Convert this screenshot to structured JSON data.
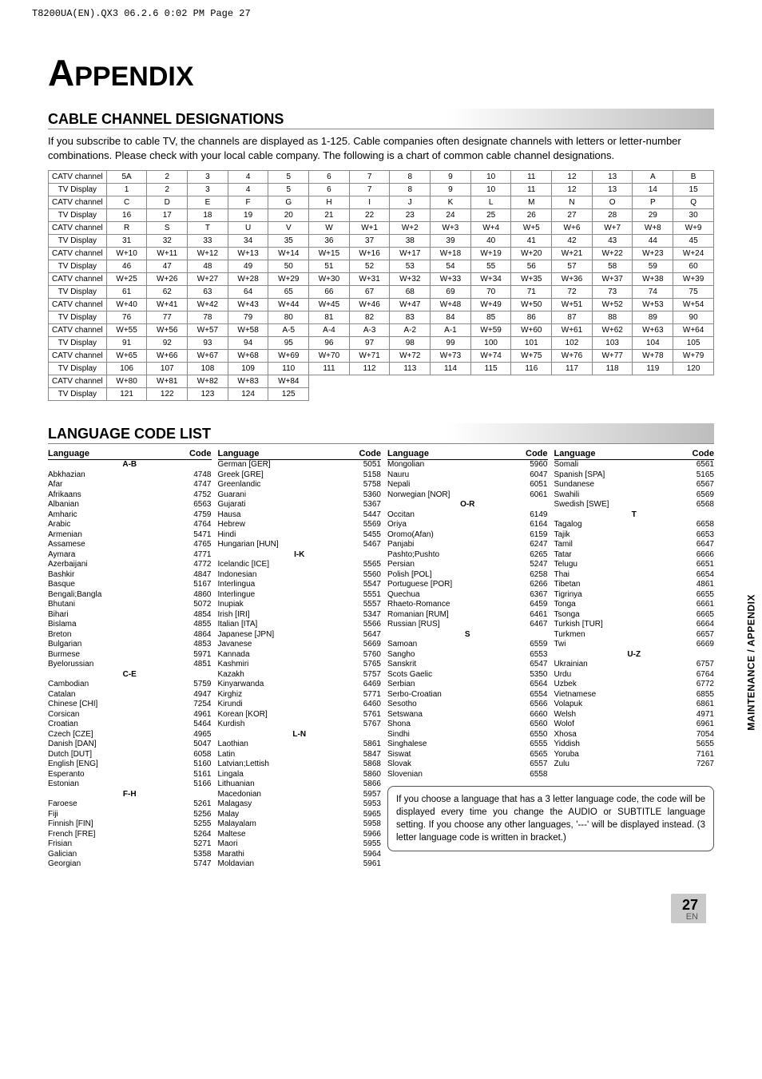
{
  "header_line": "T8200UA(EN).QX3  06.2.6  0:02 PM  Page 27",
  "appendix_label": "PPENDIX",
  "section_cable_title": "CABLE CHANNEL DESIGNATIONS",
  "intro_text": "If you subscribe to cable TV, the channels are displayed as 1-125. Cable companies often designate channels with letters or letter-number combinations. Please check with your local cable company. The following is a chart of common cable channel designations.",
  "row_labels": {
    "catv": "CATV channel",
    "tv": "TV Display"
  },
  "channel_rows": [
    {
      "catv": [
        "5A",
        "2",
        "3",
        "4",
        "5",
        "6",
        "7",
        "8",
        "9",
        "10",
        "11",
        "12",
        "13",
        "A",
        "B"
      ],
      "tv": [
        "1",
        "2",
        "3",
        "4",
        "5",
        "6",
        "7",
        "8",
        "9",
        "10",
        "11",
        "12",
        "13",
        "14",
        "15"
      ]
    },
    {
      "catv": [
        "C",
        "D",
        "E",
        "F",
        "G",
        "H",
        "I",
        "J",
        "K",
        "L",
        "M",
        "N",
        "O",
        "P",
        "Q"
      ],
      "tv": [
        "16",
        "17",
        "18",
        "19",
        "20",
        "21",
        "22",
        "23",
        "24",
        "25",
        "26",
        "27",
        "28",
        "29",
        "30"
      ]
    },
    {
      "catv": [
        "R",
        "S",
        "T",
        "U",
        "V",
        "W",
        "W+1",
        "W+2",
        "W+3",
        "W+4",
        "W+5",
        "W+6",
        "W+7",
        "W+8",
        "W+9"
      ],
      "tv": [
        "31",
        "32",
        "33",
        "34",
        "35",
        "36",
        "37",
        "38",
        "39",
        "40",
        "41",
        "42",
        "43",
        "44",
        "45"
      ]
    },
    {
      "catv": [
        "W+10",
        "W+11",
        "W+12",
        "W+13",
        "W+14",
        "W+15",
        "W+16",
        "W+17",
        "W+18",
        "W+19",
        "W+20",
        "W+21",
        "W+22",
        "W+23",
        "W+24"
      ],
      "tv": [
        "46",
        "47",
        "48",
        "49",
        "50",
        "51",
        "52",
        "53",
        "54",
        "55",
        "56",
        "57",
        "58",
        "59",
        "60"
      ]
    },
    {
      "catv": [
        "W+25",
        "W+26",
        "W+27",
        "W+28",
        "W+29",
        "W+30",
        "W+31",
        "W+32",
        "W+33",
        "W+34",
        "W+35",
        "W+36",
        "W+37",
        "W+38",
        "W+39"
      ],
      "tv": [
        "61",
        "62",
        "63",
        "64",
        "65",
        "66",
        "67",
        "68",
        "69",
        "70",
        "71",
        "72",
        "73",
        "74",
        "75"
      ]
    },
    {
      "catv": [
        "W+40",
        "W+41",
        "W+42",
        "W+43",
        "W+44",
        "W+45",
        "W+46",
        "W+47",
        "W+48",
        "W+49",
        "W+50",
        "W+51",
        "W+52",
        "W+53",
        "W+54"
      ],
      "tv": [
        "76",
        "77",
        "78",
        "79",
        "80",
        "81",
        "82",
        "83",
        "84",
        "85",
        "86",
        "87",
        "88",
        "89",
        "90"
      ]
    },
    {
      "catv": [
        "W+55",
        "W+56",
        "W+57",
        "W+58",
        "A-5",
        "A-4",
        "A-3",
        "A-2",
        "A-1",
        "W+59",
        "W+60",
        "W+61",
        "W+62",
        "W+63",
        "W+64"
      ],
      "tv": [
        "91",
        "92",
        "93",
        "94",
        "95",
        "96",
        "97",
        "98",
        "99",
        "100",
        "101",
        "102",
        "103",
        "104",
        "105"
      ]
    },
    {
      "catv": [
        "W+65",
        "W+66",
        "W+67",
        "W+68",
        "W+69",
        "W+70",
        "W+71",
        "W+72",
        "W+73",
        "W+74",
        "W+75",
        "W+76",
        "W+77",
        "W+78",
        "W+79"
      ],
      "tv": [
        "106",
        "107",
        "108",
        "109",
        "110",
        "111",
        "112",
        "113",
        "114",
        "115",
        "116",
        "117",
        "118",
        "119",
        "120"
      ]
    },
    {
      "catv": [
        "W+80",
        "W+81",
        "W+82",
        "W+83",
        "W+84"
      ],
      "tv": [
        "121",
        "122",
        "123",
        "124",
        "125"
      ]
    }
  ],
  "section_lang_title": "LANGUAGE CODE LIST",
  "lang_headers": {
    "language": "Language",
    "code": "Code"
  },
  "lang_columns": [
    [
      {
        "g": "A-B"
      },
      {
        "n": "Abkhazian",
        "c": "4748"
      },
      {
        "n": "Afar",
        "c": "4747"
      },
      {
        "n": "Afrikaans",
        "c": "4752"
      },
      {
        "n": "Albanian",
        "c": "6563"
      },
      {
        "n": "Amharic",
        "c": "4759"
      },
      {
        "n": "Arabic",
        "c": "4764"
      },
      {
        "n": "Armenian",
        "c": "5471"
      },
      {
        "n": "Assamese",
        "c": "4765"
      },
      {
        "n": "Aymara",
        "c": "4771"
      },
      {
        "n": "Azerbaijani",
        "c": "4772"
      },
      {
        "n": "Bashkir",
        "c": "4847"
      },
      {
        "n": "Basque",
        "c": "5167"
      },
      {
        "n": "Bengali;Bangla",
        "c": "4860"
      },
      {
        "n": "Bhutani",
        "c": "5072"
      },
      {
        "n": "Bihari",
        "c": "4854"
      },
      {
        "n": "Bislama",
        "c": "4855"
      },
      {
        "n": "Breton",
        "c": "4864"
      },
      {
        "n": "Bulgarian",
        "c": "4853"
      },
      {
        "n": "Burmese",
        "c": "5971"
      },
      {
        "n": "Byelorussian",
        "c": "4851"
      },
      {
        "g": "C-E"
      },
      {
        "n": "Cambodian",
        "c": "5759"
      },
      {
        "n": "Catalan",
        "c": "4947"
      },
      {
        "n": "Chinese [CHI]",
        "c": "7254"
      },
      {
        "n": "Corsican",
        "c": "4961"
      },
      {
        "n": "Croatian",
        "c": "5464"
      },
      {
        "n": "Czech [CZE]",
        "c": "4965"
      },
      {
        "n": "Danish [DAN]",
        "c": "5047"
      },
      {
        "n": "Dutch [DUT]",
        "c": "6058"
      },
      {
        "n": "English [ENG]",
        "c": "5160"
      },
      {
        "n": "Esperanto",
        "c": "5161"
      },
      {
        "n": "Estonian",
        "c": "5166"
      },
      {
        "g": "F-H"
      },
      {
        "n": "Faroese",
        "c": "5261"
      },
      {
        "n": "Fiji",
        "c": "5256"
      },
      {
        "n": "Finnish [FIN]",
        "c": "5255"
      },
      {
        "n": "French [FRE]",
        "c": "5264"
      },
      {
        "n": "Frisian",
        "c": "5271"
      },
      {
        "n": "Galician",
        "c": "5358"
      },
      {
        "n": "Georgian",
        "c": "5747"
      }
    ],
    [
      {
        "n": "German [GER]",
        "c": "5051"
      },
      {
        "n": "Greek [GRE]",
        "c": "5158"
      },
      {
        "n": "Greenlandic",
        "c": "5758"
      },
      {
        "n": "Guarani",
        "c": "5360"
      },
      {
        "n": "Gujarati",
        "c": "5367"
      },
      {
        "n": "Hausa",
        "c": "5447"
      },
      {
        "n": "Hebrew",
        "c": "5569"
      },
      {
        "n": "Hindi",
        "c": "5455"
      },
      {
        "n": "Hungarian [HUN]",
        "c": "5467"
      },
      {
        "g": "I-K"
      },
      {
        "n": "Icelandic [ICE]",
        "c": "5565"
      },
      {
        "n": "Indonesian",
        "c": "5560"
      },
      {
        "n": "Interlingua",
        "c": "5547"
      },
      {
        "n": "Interlingue",
        "c": "5551"
      },
      {
        "n": "Inupiak",
        "c": "5557"
      },
      {
        "n": "Irish [IRI]",
        "c": "5347"
      },
      {
        "n": "Italian [ITA]",
        "c": "5566"
      },
      {
        "n": "Japanese [JPN]",
        "c": "5647"
      },
      {
        "n": "Javanese",
        "c": "5669"
      },
      {
        "n": "Kannada",
        "c": "5760"
      },
      {
        "n": "Kashmiri",
        "c": "5765"
      },
      {
        "n": "Kazakh",
        "c": "5757"
      },
      {
        "n": "Kinyarwanda",
        "c": "6469"
      },
      {
        "n": "Kirghiz",
        "c": "5771"
      },
      {
        "n": "Kirundi",
        "c": "6460"
      },
      {
        "n": "Korean [KOR]",
        "c": "5761"
      },
      {
        "n": "Kurdish",
        "c": "5767"
      },
      {
        "g": "L-N"
      },
      {
        "n": "Laothian",
        "c": "5861"
      },
      {
        "n": "Latin",
        "c": "5847"
      },
      {
        "n": "Latvian;Lettish",
        "c": "5868"
      },
      {
        "n": "Lingala",
        "c": "5860"
      },
      {
        "n": "Lithuanian",
        "c": "5866"
      },
      {
        "n": "Macedonian",
        "c": "5957"
      },
      {
        "n": "Malagasy",
        "c": "5953"
      },
      {
        "n": "Malay",
        "c": "5965"
      },
      {
        "n": "Malayalam",
        "c": "5958"
      },
      {
        "n": "Maltese",
        "c": "5966"
      },
      {
        "n": "Maori",
        "c": "5955"
      },
      {
        "n": "Marathi",
        "c": "5964"
      },
      {
        "n": "Moldavian",
        "c": "5961"
      }
    ],
    [
      {
        "n": "Mongolian",
        "c": "5960"
      },
      {
        "n": "Nauru",
        "c": "6047"
      },
      {
        "n": "Nepali",
        "c": "6051"
      },
      {
        "n": "Norwegian [NOR]",
        "c": "6061"
      },
      {
        "g": "O-R"
      },
      {
        "n": "Occitan",
        "c": "6149"
      },
      {
        "n": "Oriya",
        "c": "6164"
      },
      {
        "n": "Oromo(Afan)",
        "c": "6159"
      },
      {
        "n": "Panjabi",
        "c": "6247"
      },
      {
        "n": "Pashto;Pushto",
        "c": "6265"
      },
      {
        "n": "Persian",
        "c": "5247"
      },
      {
        "n": "Polish [POL]",
        "c": "6258"
      },
      {
        "n": "Portuguese [POR]",
        "c": "6266"
      },
      {
        "n": "Quechua",
        "c": "6367"
      },
      {
        "n": "Rhaeto-Romance",
        "c": "6459"
      },
      {
        "n": "Romanian [RUM]",
        "c": "6461"
      },
      {
        "n": "Russian [RUS]",
        "c": "6467"
      },
      {
        "g": "S"
      },
      {
        "n": "Samoan",
        "c": "6559"
      },
      {
        "n": "Sangho",
        "c": "6553"
      },
      {
        "n": "Sanskrit",
        "c": "6547"
      },
      {
        "n": "Scots Gaelic",
        "c": "5350"
      },
      {
        "n": "Serbian",
        "c": "6564"
      },
      {
        "n": "Serbo-Croatian",
        "c": "6554"
      },
      {
        "n": "Sesotho",
        "c": "6566"
      },
      {
        "n": "Setswana",
        "c": "6660"
      },
      {
        "n": "Shona",
        "c": "6560"
      },
      {
        "n": "Sindhi",
        "c": "6550"
      },
      {
        "n": "Singhalese",
        "c": "6555"
      },
      {
        "n": "Siswat",
        "c": "6565"
      },
      {
        "n": "Slovak",
        "c": "6557"
      },
      {
        "n": "Slovenian",
        "c": "6558"
      }
    ],
    [
      {
        "n": "Somali",
        "c": "6561"
      },
      {
        "n": "Spanish [SPA]",
        "c": "5165"
      },
      {
        "n": "Sundanese",
        "c": "6567"
      },
      {
        "n": "Swahili",
        "c": "6569"
      },
      {
        "n": "Swedish [SWE]",
        "c": "6568"
      },
      {
        "g": "T"
      },
      {
        "n": "Tagalog",
        "c": "6658"
      },
      {
        "n": "Tajik",
        "c": "6653"
      },
      {
        "n": "Tamil",
        "c": "6647"
      },
      {
        "n": "Tatar",
        "c": "6666"
      },
      {
        "n": "Telugu",
        "c": "6651"
      },
      {
        "n": "Thai",
        "c": "6654"
      },
      {
        "n": "Tibetan",
        "c": "4861"
      },
      {
        "n": "Tigrinya",
        "c": "6655"
      },
      {
        "n": "Tonga",
        "c": "6661"
      },
      {
        "n": "Tsonga",
        "c": "6665"
      },
      {
        "n": "Turkish [TUR]",
        "c": "6664"
      },
      {
        "n": "Turkmen",
        "c": "6657"
      },
      {
        "n": "Twi",
        "c": "6669"
      },
      {
        "g": "U-Z"
      },
      {
        "n": "Ukrainian",
        "c": "6757"
      },
      {
        "n": "Urdu",
        "c": "6764"
      },
      {
        "n": "Uzbek",
        "c": "6772"
      },
      {
        "n": "Vietnamese",
        "c": "6855"
      },
      {
        "n": "Volapuk",
        "c": "6861"
      },
      {
        "n": "Welsh",
        "c": "4971"
      },
      {
        "n": "Wolof",
        "c": "6961"
      },
      {
        "n": "Xhosa",
        "c": "7054"
      },
      {
        "n": "Yiddish",
        "c": "5655"
      },
      {
        "n": "Yoruba",
        "c": "7161"
      },
      {
        "n": "Zulu",
        "c": "7267"
      }
    ]
  ],
  "note_text": "If you choose a language that has a 3 letter language code, the code will be displayed every time you change the AUDIO or SUBTITLE language setting. If you choose any other languages, '---' will be displayed instead. (3 letter language code is written in bracket.)",
  "side_label": "MAINTENANCE / APPENDIX",
  "page_number": "27",
  "page_en": "EN"
}
